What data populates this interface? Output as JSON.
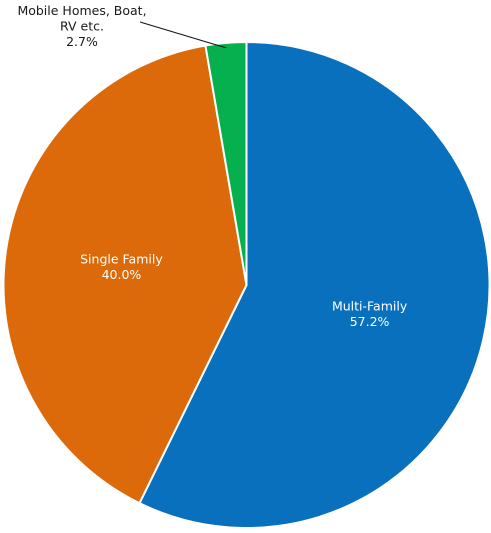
{
  "chart_data": {
    "type": "pie",
    "title": "",
    "slices": [
      {
        "name": "Multi-Family",
        "value": 57.2,
        "value_label": "57.2%",
        "color": "#0870bd",
        "label_position": "inside"
      },
      {
        "name": "Single Family",
        "value": 40.0,
        "value_label": "40.0%",
        "color": "#dd6a0a",
        "label_position": "inside"
      },
      {
        "name": "Mobile Homes, Boat,\nRV etc.",
        "value": 2.7,
        "value_label": "2.7%",
        "color": "#06b04f",
        "label_position": "outside"
      }
    ],
    "start_angle_deg": 0,
    "direction": "clockwise",
    "slice_border_color": "#ffffff",
    "legend": "none"
  }
}
